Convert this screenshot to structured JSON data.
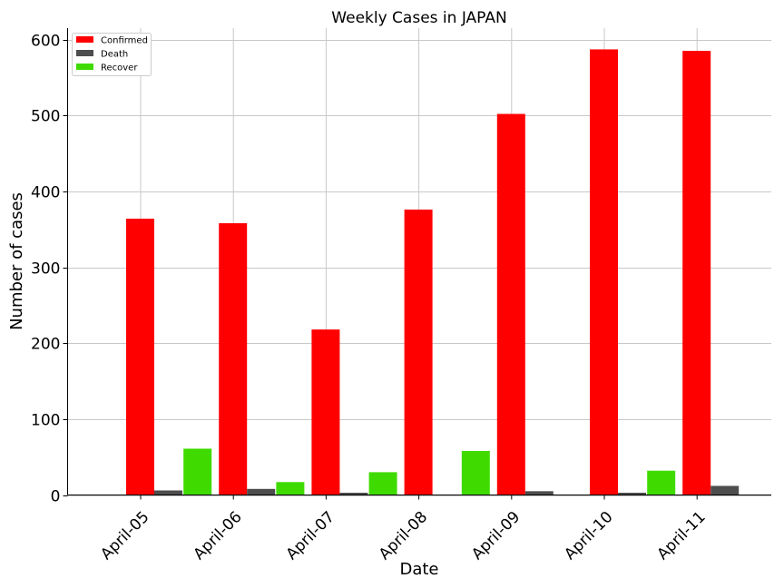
{
  "chart_data": {
    "type": "bar",
    "title": "Weekly Cases in JAPAN",
    "xlabel": "Date",
    "ylabel": "Number of cases",
    "categories": [
      "April-05",
      "April-06",
      "April-07",
      "April-08",
      "April-09",
      "April-10",
      "April-11"
    ],
    "series": [
      {
        "name": "Recover",
        "color": "#3fdb00",
        "values": [
          0,
          61,
          17,
          30,
          58,
          0,
          32
        ]
      },
      {
        "name": "Confirmed",
        "color": "#ff0000",
        "values": [
          364,
          358,
          218,
          376,
          502,
          587,
          585
        ]
      },
      {
        "name": "Death",
        "color": "#4d4d4d",
        "values": [
          6,
          8,
          3,
          0,
          5,
          3,
          12
        ]
      }
    ],
    "legend_order": [
      "Confirmed",
      "Death",
      "Recover"
    ],
    "ylim": [
      0,
      615
    ],
    "yticks": [
      0,
      100,
      200,
      300,
      400,
      500,
      600
    ],
    "grid": true,
    "legend_position": "top-left"
  }
}
